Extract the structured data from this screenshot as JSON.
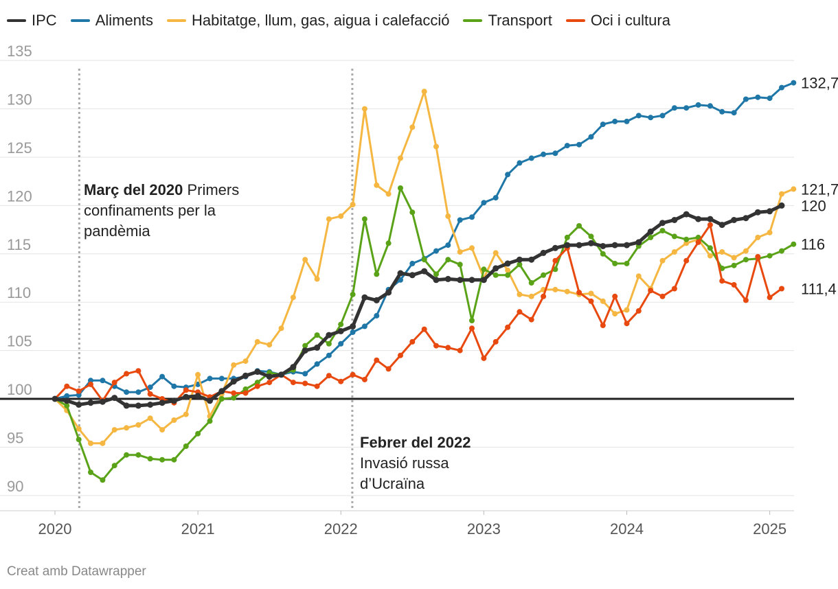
{
  "chart_data": {
    "type": "line",
    "title": "",
    "xlabel": "",
    "ylabel": "",
    "ylim": [
      88,
      137
    ],
    "xlim": [
      2020.0,
      2025.17
    ],
    "yticks": [
      90,
      95,
      100,
      105,
      110,
      115,
      120,
      125,
      130,
      135
    ],
    "xticks": [
      2020,
      2021,
      2022,
      2023,
      2024,
      2025
    ],
    "grid": true,
    "legend_position": "top-left",
    "baseline": 100,
    "annotations": [
      {
        "x": 2020.17,
        "bold": "Març del 2020",
        "text": "Primers confinaments per la pandèmia"
      },
      {
        "x": 2022.08,
        "bold": "Febrer del 2022",
        "text": "Invasió russa d’Ucraïna"
      }
    ],
    "end_labels": [
      {
        "series": "Aliments",
        "text": "132,7"
      },
      {
        "series": "Habitatge, llum, gas, aigua i calefacció",
        "text": "121,7"
      },
      {
        "series": "IPC",
        "text": "120"
      },
      {
        "series": "Transport",
        "text": "116"
      },
      {
        "series": "Oci i cultura",
        "text": "111,4"
      }
    ],
    "series": [
      {
        "name": "Aliments",
        "color": "#1f77a8",
        "values": [
          100,
          100.3,
          100.4,
          101.9,
          101.9,
          101.3,
          100.7,
          100.7,
          101.2,
          102.3,
          101.3,
          101.2,
          101.5,
          102.1,
          102.1,
          102.1,
          102.3,
          102.9,
          102.8,
          102.5,
          102.8,
          102.6,
          103.6,
          104.5,
          105.7,
          106.9,
          107.5,
          108.6,
          111.3,
          112.3,
          114.0,
          114.5,
          115.3,
          115.9,
          118.5,
          118.8,
          120.3,
          120.8,
          123.2,
          124.4,
          124.9,
          125.3,
          125.4,
          126.2,
          126.3,
          127.1,
          128.4,
          128.7,
          128.7,
          129.3,
          129.1,
          129.3,
          130.1,
          130.1,
          130.4,
          130.3,
          129.7,
          129.6,
          131.0,
          131.2,
          131.1,
          132.2,
          132.7
        ]
      },
      {
        "name": "Habitatge, llum, gas, aigua i calefacció",
        "color": "#f5b742",
        "values": [
          100,
          98.8,
          96.9,
          95.4,
          95.4,
          96.8,
          97.0,
          97.3,
          98.0,
          96.8,
          97.8,
          98.4,
          102.5,
          98.2,
          100.5,
          103.5,
          103.9,
          105.9,
          105.6,
          107.3,
          110.5,
          114.4,
          112.4,
          118.6,
          118.9,
          120.1,
          130.0,
          122.1,
          121.2,
          124.9,
          128.1,
          131.8,
          126.1,
          118.9,
          115.2,
          115.6,
          112.5,
          115.1,
          113.3,
          110.8,
          110.6,
          111.3,
          111.3,
          111.1,
          110.8,
          110.9,
          110.1,
          108.8,
          109.2,
          112.7,
          111.4,
          114.3,
          115.2,
          116.1,
          116.5,
          114.8,
          115.2,
          114.6,
          115.3,
          116.7,
          117.2,
          121.2,
          121.7
        ]
      },
      {
        "name": "Transport",
        "color": "#5aa319",
        "values": [
          100,
          99.3,
          95.8,
          92.4,
          91.6,
          93.1,
          94.2,
          94.2,
          93.8,
          93.7,
          93.7,
          95.1,
          96.4,
          97.7,
          100.0,
          100.1,
          101.0,
          101.7,
          102.7,
          102.5,
          103.0,
          105.5,
          106.6,
          105.7,
          107.7,
          110.8,
          118.6,
          112.9,
          116.1,
          121.8,
          119.3,
          114.4,
          112.9,
          114.4,
          113.9,
          108.1,
          113.4,
          112.8,
          112.8,
          113.9,
          112.0,
          112.8,
          113.4,
          116.7,
          117.9,
          116.8,
          115.0,
          114.0,
          114.0,
          115.8,
          116.7,
          117.4,
          116.8,
          116.5,
          116.7,
          115.6,
          113.5,
          113.8,
          114.4,
          114.5,
          114.8,
          115.3,
          116.0
        ]
      },
      {
        "name": "Oci i cultura",
        "color": "#e8490f",
        "values": [
          100,
          101.3,
          100.8,
          101.5,
          99.8,
          101.7,
          102.6,
          102.9,
          100.5,
          100.0,
          99.6,
          100.9,
          100.7,
          100.2,
          100.8,
          100.6,
          100.6,
          101.3,
          101.7,
          102.5,
          101.7,
          101.6,
          101.3,
          102.4,
          101.8,
          102.5,
          102.0,
          104.0,
          103.1,
          104.5,
          105.9,
          107.2,
          105.5,
          105.3,
          105.0,
          107.3,
          104.2,
          105.9,
          107.4,
          109.0,
          108.2,
          110.6,
          114.3,
          115.6,
          111.0,
          110.1,
          107.6,
          110.6,
          107.8,
          109.1,
          111.2,
          110.6,
          111.4,
          114.3,
          116.2,
          118.0,
          112.2,
          111.8,
          110.2,
          114.7,
          110.5,
          111.4
        ]
      },
      {
        "name": "IPC",
        "color": "#333333",
        "values": [
          100,
          99.8,
          99.4,
          99.6,
          99.7,
          100.1,
          99.3,
          99.3,
          99.4,
          99.6,
          99.8,
          100.2,
          100.3,
          99.8,
          100.8,
          101.8,
          102.4,
          102.8,
          102.3,
          102.5,
          103.3,
          105.0,
          105.3,
          106.6,
          107.0,
          107.5,
          110.5,
          110.2,
          111.0,
          113.0,
          112.8,
          113.2,
          112.3,
          112.4,
          112.3,
          112.3,
          112.3,
          113.5,
          114.0,
          114.4,
          114.4,
          115.1,
          115.6,
          115.9,
          115.9,
          116.1,
          115.8,
          115.9,
          115.9,
          116.2,
          117.3,
          118.2,
          118.5,
          119.1,
          118.6,
          118.6,
          118.0,
          118.5,
          118.7,
          119.3,
          119.4,
          120.0
        ]
      }
    ]
  },
  "legend": [
    {
      "label": "IPC",
      "color": "#333333"
    },
    {
      "label": "Aliments",
      "color": "#1f77a8"
    },
    {
      "label": "Habitatge, llum, gas, aigua i calefacció",
      "color": "#f5b742"
    },
    {
      "label": "Transport",
      "color": "#5aa319"
    },
    {
      "label": "Oci i cultura",
      "color": "#e8490f"
    }
  ],
  "annotation_1": {
    "bold": "Març del 2020",
    "text": "Primers confinaments per la pandèmia"
  },
  "annotation_2": {
    "bold": "Febrer del 2022",
    "text": "Invasió russa d’Ucraïna"
  },
  "footer": "Creat amb Datawrapper"
}
